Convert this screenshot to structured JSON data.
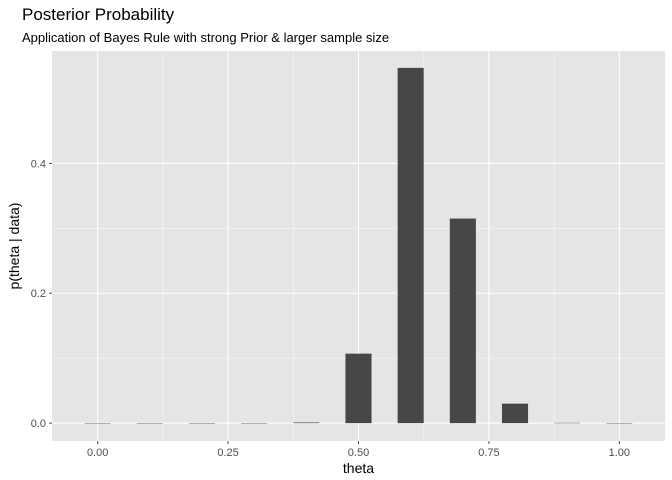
{
  "chart_data": {
    "type": "bar",
    "title": "Posterior Probability",
    "subtitle": "Application of Bayes Rule with strong Prior & larger sample size",
    "xlabel": "theta",
    "ylabel": "p(theta | data)",
    "x": [
      0.0,
      0.1,
      0.2,
      0.3,
      0.4,
      0.5,
      0.6,
      0.7,
      0.8,
      0.9,
      1.0
    ],
    "values": [
      0.0,
      0.0,
      0.0,
      0.0,
      0.001,
      0.107,
      0.547,
      0.315,
      0.03,
      0.0005,
      0.0
    ],
    "bar_width": 0.05,
    "xlim": [
      -0.0875,
      1.0875
    ],
    "ylim": [
      -0.0275,
      0.573
    ],
    "x_ticks": [
      0.0,
      0.25,
      0.5,
      0.75,
      1.0
    ],
    "x_tick_labels": [
      "0.00",
      "0.25",
      "0.50",
      "0.75",
      "1.00"
    ],
    "y_ticks": [
      0.0,
      0.2,
      0.4
    ],
    "y_tick_labels": [
      "0.0",
      "0.2",
      "0.4"
    ],
    "grid": true,
    "colors": {
      "panel": "#e5e5e5",
      "grid_major": "#ffffff",
      "bar": "#474747",
      "tick": "#4d4d4d"
    }
  }
}
